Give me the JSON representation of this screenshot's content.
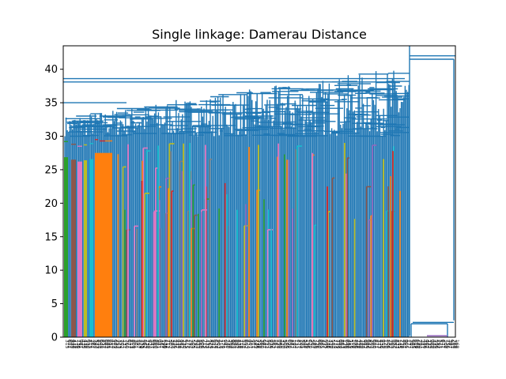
{
  "chart_data": {
    "type": "dendrogram",
    "title": "Single linkage: Damerau Distance",
    "xlabel": "",
    "ylabel": "",
    "ylim": [
      0,
      43.5
    ],
    "y_ticks": [
      0,
      5,
      10,
      15,
      20,
      25,
      30,
      35,
      40
    ],
    "grid": false,
    "legend": "none",
    "leaf_count": 1000,
    "colors": {
      "default_link": "#1f77b4",
      "clusters": [
        "#2ca02c",
        "#d62728",
        "#9467bd",
        "#8c564b",
        "#e377c2",
        "#7f7f7f",
        "#bcbd22",
        "#17becf",
        "#ff7f0e"
      ]
    },
    "top_merges": [
      {
        "height": 42.0,
        "note": "root merge"
      },
      {
        "height": 41.5
      },
      {
        "height": 38.6
      },
      {
        "height": 38.1
      },
      {
        "height": 35.0
      },
      {
        "height": 30.0
      }
    ],
    "right_cluster": {
      "merge_heights": [
        2.5,
        2.0,
        1.6,
        0.2
      ]
    },
    "colored_clusters": [
      {
        "color": "#2ca02c",
        "height": 29.2
      },
      {
        "color": "#8c564b",
        "height": 28.8
      },
      {
        "color": "#e377c2",
        "height": 28.5
      },
      {
        "color": "#d62728",
        "height": 29.5
      },
      {
        "color": "#ff7f0e",
        "height": 29.3
      },
      {
        "color": "#9467bd",
        "height": 28.9
      },
      {
        "color": "#bcbd22",
        "height": 28.6
      },
      {
        "color": "#17becf",
        "height": 29.0
      },
      {
        "color": "#7f7f7f",
        "height": 28.2
      }
    ]
  }
}
